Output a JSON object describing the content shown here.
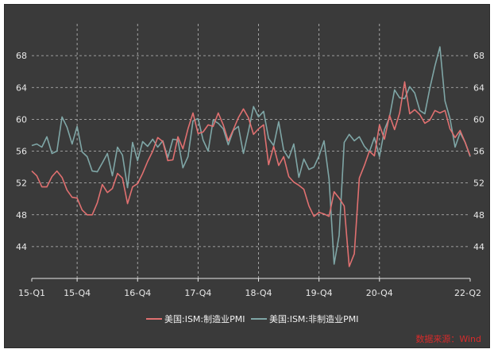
{
  "chart_data": {
    "type": "line",
    "title": "",
    "xlabel": "",
    "ylabel": "",
    "ylim": [
      40,
      72
    ],
    "yticks": [
      44,
      48,
      52,
      56,
      60,
      64,
      68
    ],
    "xtick_labels": [
      "15-Q1",
      "15-Q4",
      "16-Q4",
      "17-Q4",
      "18-Q4",
      "19-Q4",
      "20-Q4",
      "22-Q2"
    ],
    "grid": true,
    "legend_position": "bottom",
    "colors": {
      "manufacturing": "#e07070",
      "nonmanufacturing": "#7fa6a6"
    },
    "series": [
      {
        "name": "美国:ISM:制造业PMI",
        "values": [
          53.5,
          52.9,
          51.5,
          51.5,
          52.8,
          53.5,
          52.7,
          51.1,
          50.2,
          50.1,
          48.6,
          48.0,
          48.0,
          49.5,
          51.8,
          50.8,
          51.3,
          53.2,
          52.6,
          49.4,
          51.5,
          51.9,
          53.2,
          54.7,
          56.0,
          57.7,
          57.2,
          54.8,
          54.9,
          57.8,
          56.3,
          58.8,
          60.8,
          58.2,
          58.4,
          59.3,
          59.1,
          60.8,
          59.3,
          57.3,
          58.7,
          60.2,
          61.3,
          60.2,
          58.1,
          58.8,
          59.3,
          54.3,
          56.6,
          54.2,
          55.3,
          52.8,
          52.1,
          51.7,
          51.2,
          49.1,
          47.8,
          48.3,
          48.1,
          47.8,
          50.9,
          50.1,
          49.1,
          41.5,
          43.1,
          52.6,
          54.2,
          56.0,
          55.4,
          59.3,
          57.5,
          60.5,
          58.7,
          60.8,
          64.7,
          60.7,
          61.2,
          60.6,
          59.5,
          59.9,
          61.1,
          60.8,
          61.1,
          58.8,
          57.7,
          58.6,
          57.1,
          55.4
        ],
        "color": "#e07070"
      },
      {
        "name": "美国:ISM:非制造业PMI",
        "values": [
          56.7,
          56.9,
          56.5,
          57.8,
          55.7,
          56.0,
          60.3,
          59.0,
          56.9,
          59.1,
          55.9,
          55.3,
          53.5,
          53.4,
          54.5,
          55.7,
          52.9,
          56.5,
          55.5,
          51.4,
          57.1,
          54.8,
          57.2,
          56.6,
          57.5,
          56.5,
          57.3,
          55.2,
          57.5,
          57.4,
          53.9,
          55.3,
          59.8,
          60.1,
          57.4,
          56.0,
          59.9,
          59.5,
          58.8,
          56.8,
          58.6,
          59.1,
          55.7,
          58.5,
          61.6,
          60.3,
          61.0,
          57.6,
          56.7,
          59.7,
          56.1,
          55.1,
          56.9,
          52.7,
          55.0,
          53.7,
          54.0,
          55.4,
          57.3,
          52.5,
          41.8,
          45.4,
          57.1,
          58.1,
          57.3,
          57.8,
          56.6,
          55.9,
          57.7,
          55.3,
          58.7,
          60.3,
          63.7,
          62.7,
          62.6,
          64.1,
          63.3,
          61.1,
          60.7,
          63.9,
          66.7,
          69.1,
          62.3,
          60.1,
          56.5,
          58.3,
          57.1,
          55.3
        ],
        "color": "#7fa6a6"
      }
    ],
    "source_text": "数据来源：Wind"
  }
}
